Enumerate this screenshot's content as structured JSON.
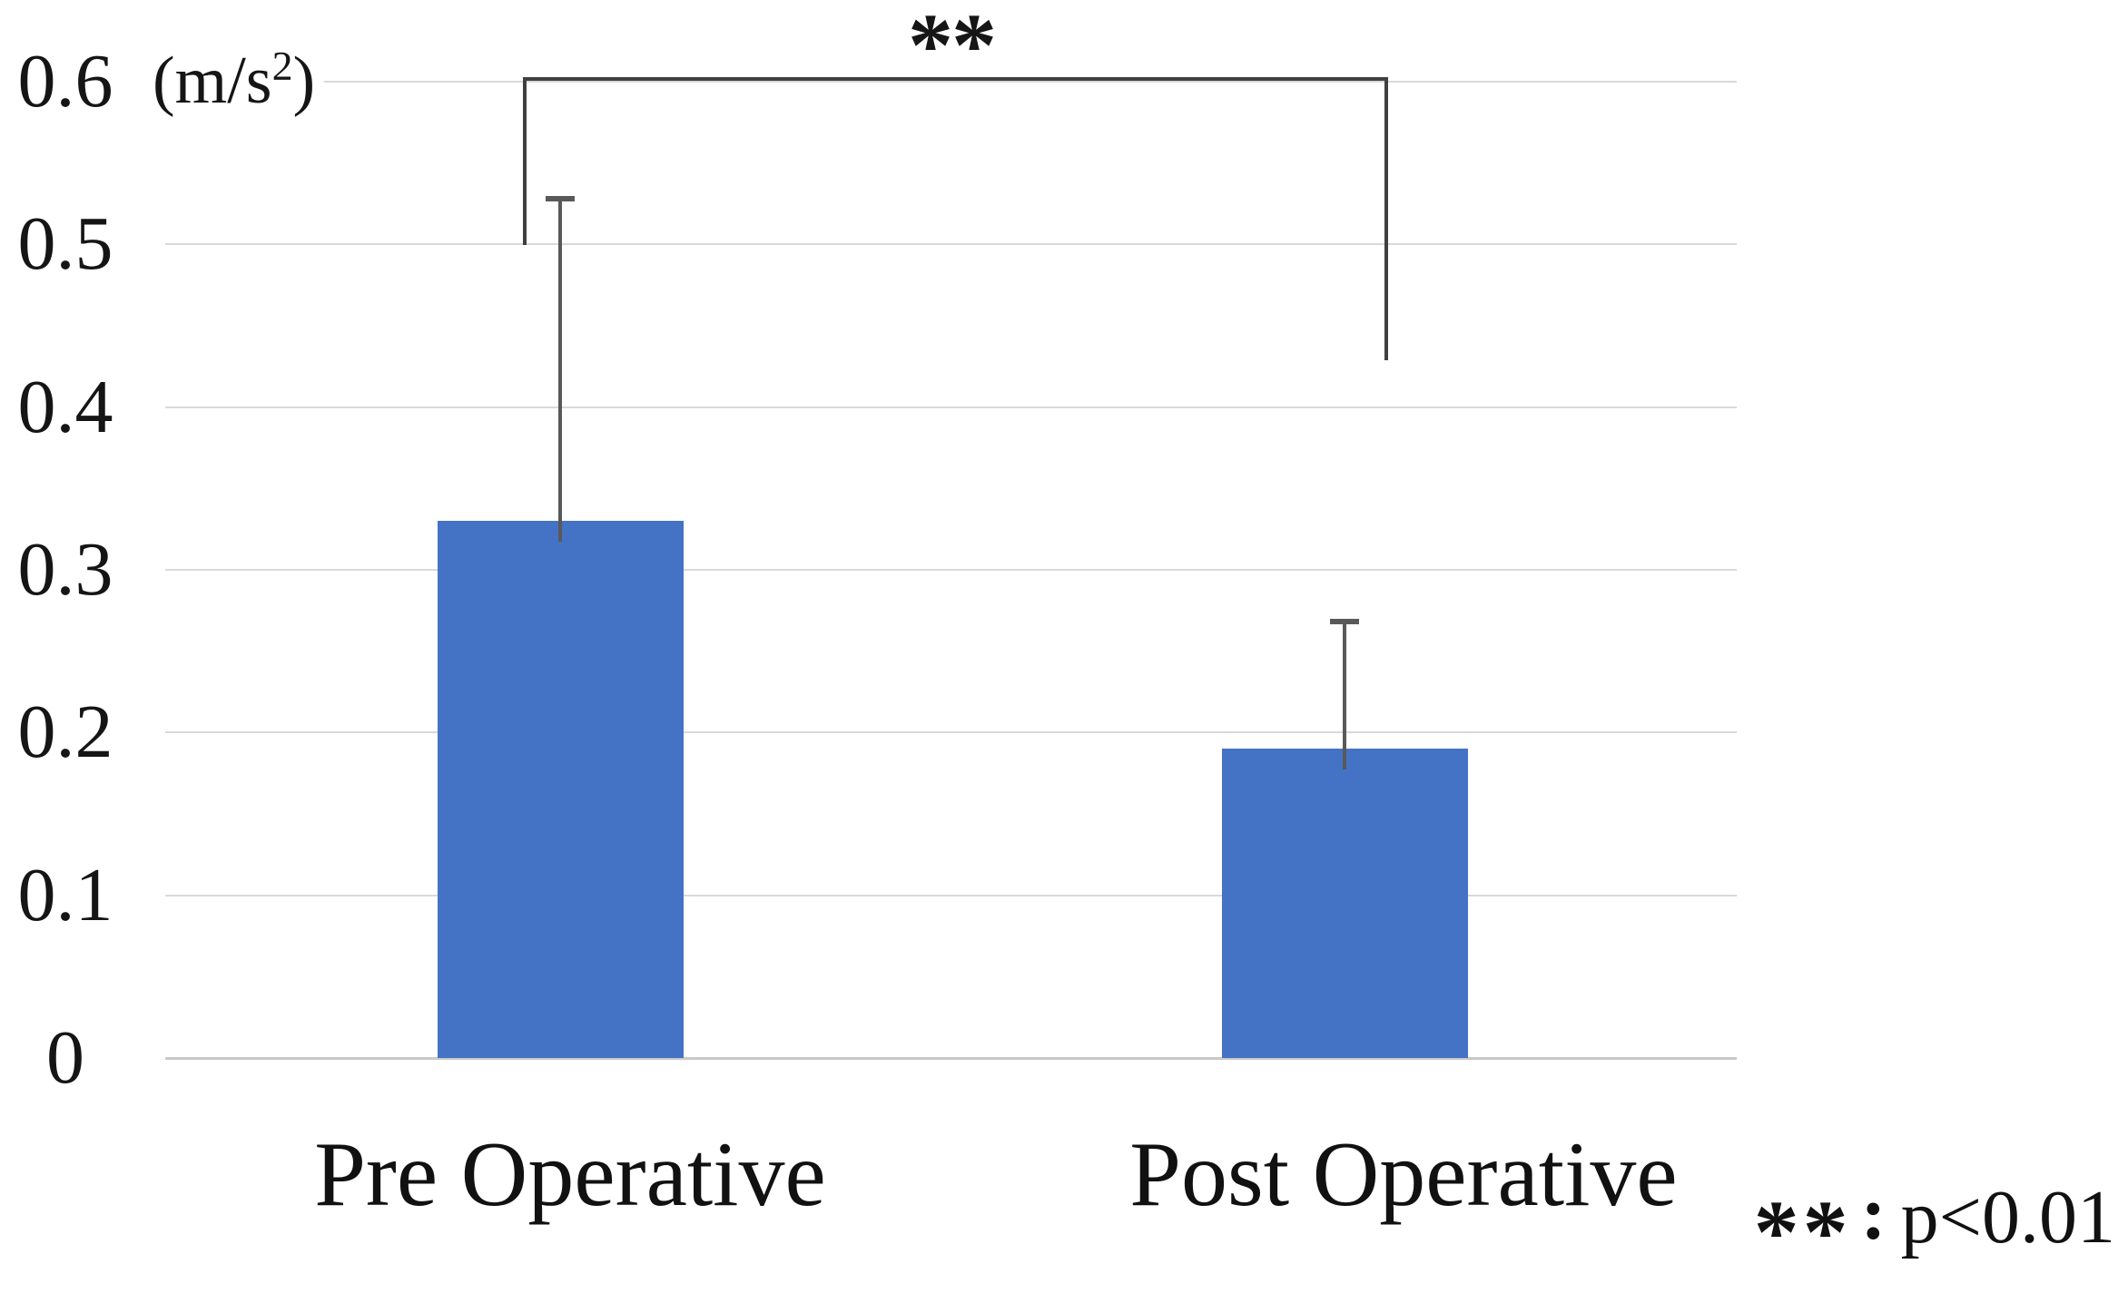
{
  "chart_data": {
    "type": "bar",
    "title": "",
    "unit_label": "(m/s²)",
    "unit_parts": {
      "prefix": "(m/s",
      "sup": "2",
      "suffix": ")"
    },
    "categories": [
      "Pre Operative",
      "Post Operative"
    ],
    "values": [
      0.33,
      0.19
    ],
    "error_plus": [
      0.2,
      0.08
    ],
    "ylim": [
      0,
      0.6
    ],
    "ytick_values": [
      0,
      0.1,
      0.2,
      0.3,
      0.4,
      0.5,
      0.6
    ],
    "ytick_labels": [
      "0",
      "0.1",
      "0.2",
      "0.3",
      "0.4",
      "0.5",
      "0.6"
    ],
    "grid": true,
    "legend_position": "none",
    "bar_color": "#4473C6",
    "error_bar_color": "#595959",
    "gridline_color": "#D9D9D9",
    "bracket_color": "#404040",
    "significance": {
      "marker": "**",
      "between": [
        "Pre Operative",
        "Post Operative"
      ]
    },
    "footnote": {
      "stars": "**",
      "colon": ":",
      "label": "p<0.01"
    }
  }
}
